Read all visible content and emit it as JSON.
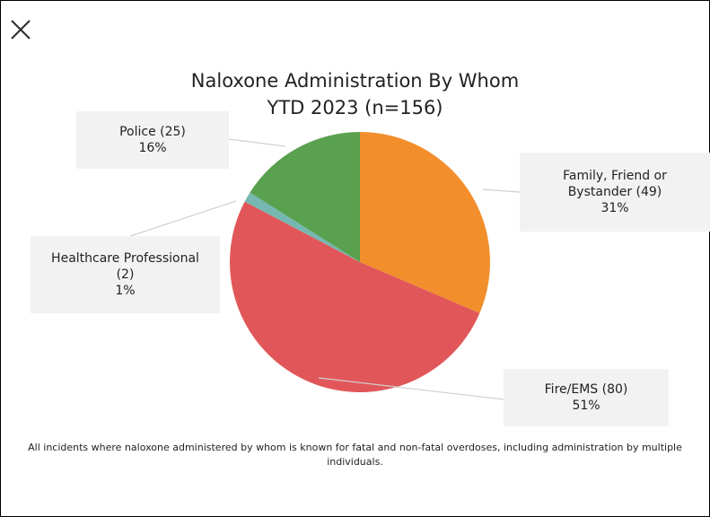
{
  "close_icon": "close-icon",
  "chart_data": {
    "type": "pie",
    "title_line1": "Naloxone Administration By Whom",
    "title_line2": "YTD 2023 (n=156)",
    "slices": [
      {
        "name": "Family, Friend or Bystander",
        "count": 49,
        "percent": "31%",
        "label_line1": "Family, Friend or",
        "label_line2": "Bystander (49)",
        "color": "#f28e2b"
      },
      {
        "name": "Fire/EMS",
        "count": 80,
        "percent": "51%",
        "label_line1": "Fire/EMS (80)",
        "label_line2": "",
        "color": "#e15759"
      },
      {
        "name": "Healthcare Professional",
        "count": 2,
        "percent": "1%",
        "label_line1": "Healthcare Professional",
        "label_line2": "(2)",
        "color": "#76b7b2"
      },
      {
        "name": "Police",
        "count": 25,
        "percent": "16%",
        "label_line1": "Police (25)",
        "label_line2": "",
        "color": "#59a14f"
      }
    ],
    "total": 156,
    "legend": "none"
  },
  "footnote": "All incidents where naloxone administered by whom is known for fatal and non-fatal overdoses, including administration by multiple individuals."
}
